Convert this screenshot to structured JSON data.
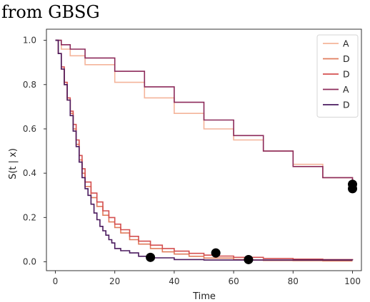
{
  "caption": "from GBSG",
  "chart_data": {
    "type": "line",
    "title": "",
    "xlabel": "Time",
    "ylabel": "S(t | x)",
    "xlim": [
      -3,
      103
    ],
    "ylim": [
      -0.04,
      1.05
    ],
    "xticks": [
      0,
      20,
      40,
      60,
      80,
      100
    ],
    "yticks": [
      0.0,
      0.2,
      0.4,
      0.6,
      0.8,
      1.0
    ],
    "xtick_labels": [
      "0",
      "20",
      "40",
      "60",
      "80",
      "100"
    ],
    "ytick_labels": [
      "0.0",
      "0.2",
      "0.4",
      "0.6",
      "0.8",
      "1.0"
    ],
    "step": true,
    "grid": false,
    "legend_position": "top-right",
    "series": [
      {
        "name": "A",
        "color": "#f4b49a",
        "x": [
          0,
          2,
          5,
          10,
          20,
          30,
          40,
          50,
          60,
          70,
          80,
          90,
          100
        ],
        "y": [
          1.0,
          0.96,
          0.93,
          0.89,
          0.81,
          0.74,
          0.67,
          0.6,
          0.55,
          0.5,
          0.44,
          0.38,
          0.33
        ],
        "marker_x": 100,
        "marker_y": 0.33
      },
      {
        "name": "D",
        "color": "#e07c5c",
        "x": [
          0,
          1,
          2,
          3,
          4,
          5,
          6,
          7,
          8,
          9,
          10,
          12,
          14,
          16,
          18,
          20,
          22,
          25,
          28,
          32,
          36,
          40,
          45,
          50,
          60,
          65,
          70,
          80,
          90,
          100
        ],
        "y": [
          1.0,
          0.94,
          0.87,
          0.8,
          0.73,
          0.67,
          0.6,
          0.53,
          0.46,
          0.4,
          0.34,
          0.29,
          0.25,
          0.21,
          0.18,
          0.155,
          0.13,
          0.1,
          0.08,
          0.06,
          0.045,
          0.035,
          0.025,
          0.017,
          0.01,
          0.008,
          0.006,
          0.005,
          0.004,
          0.004
        ],
        "marker_x": 65,
        "marker_y": 0.01
      },
      {
        "name": "D",
        "color": "#d44f4f",
        "x": [
          0,
          1,
          2,
          3,
          4,
          5,
          6,
          7,
          8,
          9,
          10,
          12,
          14,
          16,
          18,
          20,
          22,
          25,
          28,
          32,
          36,
          40,
          45,
          50,
          54,
          60,
          70,
          80,
          90,
          100
        ],
        "y": [
          1.0,
          0.94,
          0.88,
          0.81,
          0.74,
          0.68,
          0.62,
          0.55,
          0.48,
          0.42,
          0.36,
          0.31,
          0.27,
          0.23,
          0.2,
          0.17,
          0.145,
          0.115,
          0.093,
          0.075,
          0.06,
          0.048,
          0.038,
          0.03,
          0.026,
          0.02,
          0.015,
          0.012,
          0.01,
          0.008
        ],
        "marker_x": 54,
        "marker_y": 0.04
      },
      {
        "name": "A",
        "color": "#8c2a5a",
        "x": [
          0,
          2,
          5,
          10,
          20,
          30,
          40,
          50,
          60,
          70,
          80,
          90,
          100
        ],
        "y": [
          1.0,
          0.98,
          0.96,
          0.92,
          0.86,
          0.79,
          0.72,
          0.64,
          0.57,
          0.5,
          0.43,
          0.38,
          0.34
        ],
        "marker_x": 100,
        "marker_y": 0.35
      },
      {
        "name": "D",
        "color": "#4a1a5e",
        "x": [
          0,
          1,
          2,
          3,
          4,
          5,
          6,
          7,
          8,
          9,
          10,
          11,
          12,
          13,
          14,
          15,
          16,
          17,
          18,
          19,
          20,
          22,
          25,
          28,
          32,
          40,
          50,
          100
        ],
        "y": [
          1.0,
          0.94,
          0.87,
          0.8,
          0.73,
          0.66,
          0.59,
          0.52,
          0.45,
          0.38,
          0.33,
          0.3,
          0.26,
          0.22,
          0.19,
          0.16,
          0.14,
          0.12,
          0.1,
          0.085,
          0.06,
          0.05,
          0.04,
          0.025,
          0.018,
          0.01,
          0.008,
          0.007
        ],
        "marker_x": 32,
        "marker_y": 0.02
      }
    ]
  }
}
